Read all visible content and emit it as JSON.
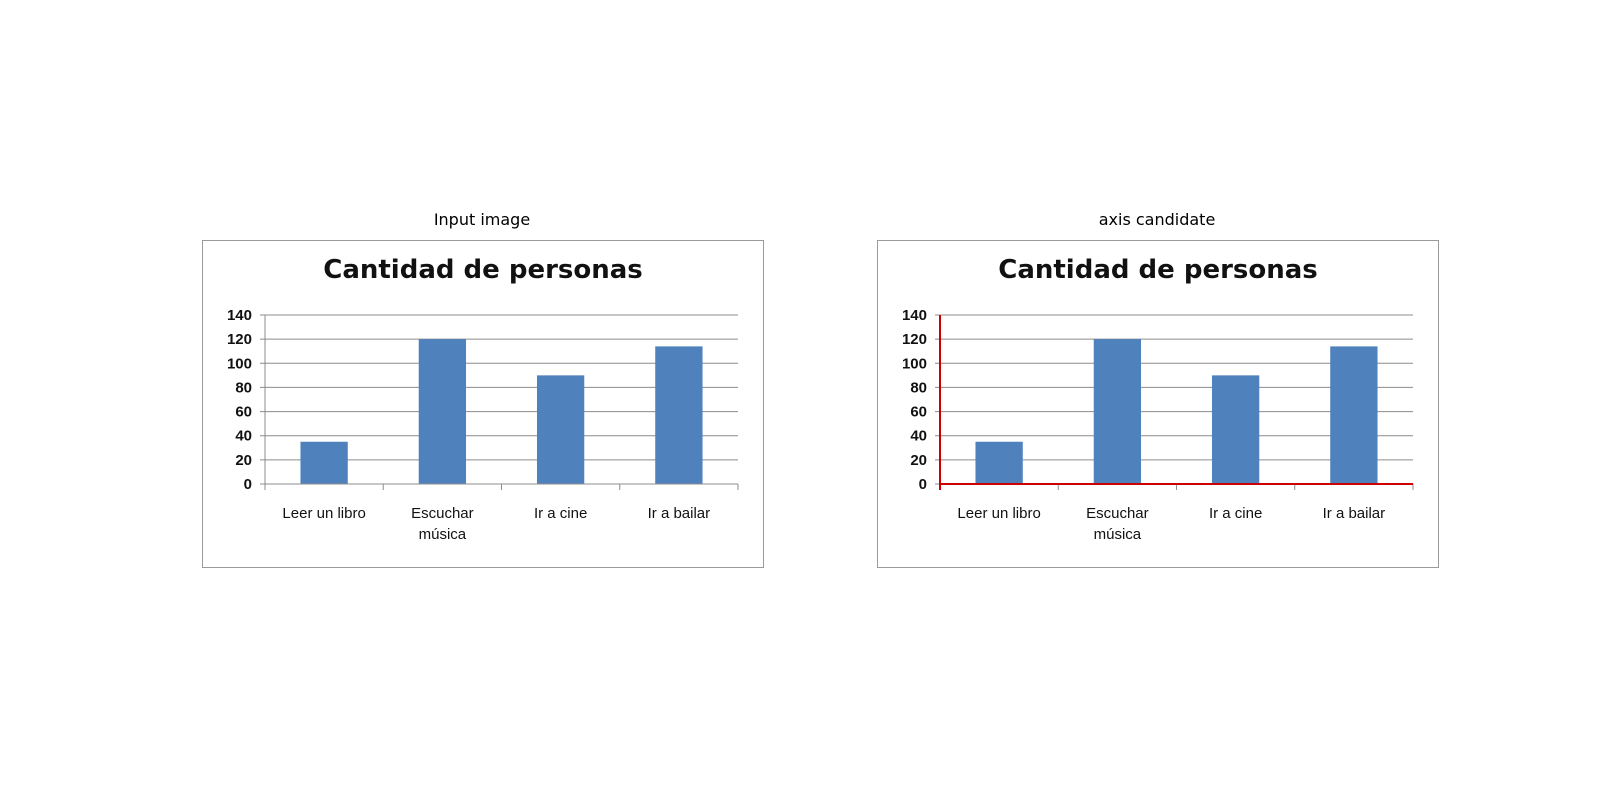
{
  "panels": [
    {
      "caption": "Input image",
      "axis_highlight": false
    },
    {
      "caption": "axis candidate",
      "axis_highlight": true
    }
  ],
  "colors": {
    "bar": "#4f81bd",
    "grid": "#8c8c8c",
    "axis_highlight": "#cc0000",
    "frame": "#9a9a9a"
  },
  "chart_data": {
    "type": "bar",
    "title": "Cantidad de personas",
    "categories": [
      [
        "Leer un libro"
      ],
      [
        "Escuchar",
        "música"
      ],
      [
        "Ir a cine"
      ],
      [
        "Ir a bailar"
      ]
    ],
    "values": [
      35,
      120,
      90,
      114
    ],
    "ylim": [
      0,
      140
    ],
    "yticks": [
      0,
      20,
      40,
      60,
      80,
      100,
      120,
      140
    ],
    "xlabel": "",
    "ylabel": "",
    "grid": true,
    "legend": "none"
  }
}
